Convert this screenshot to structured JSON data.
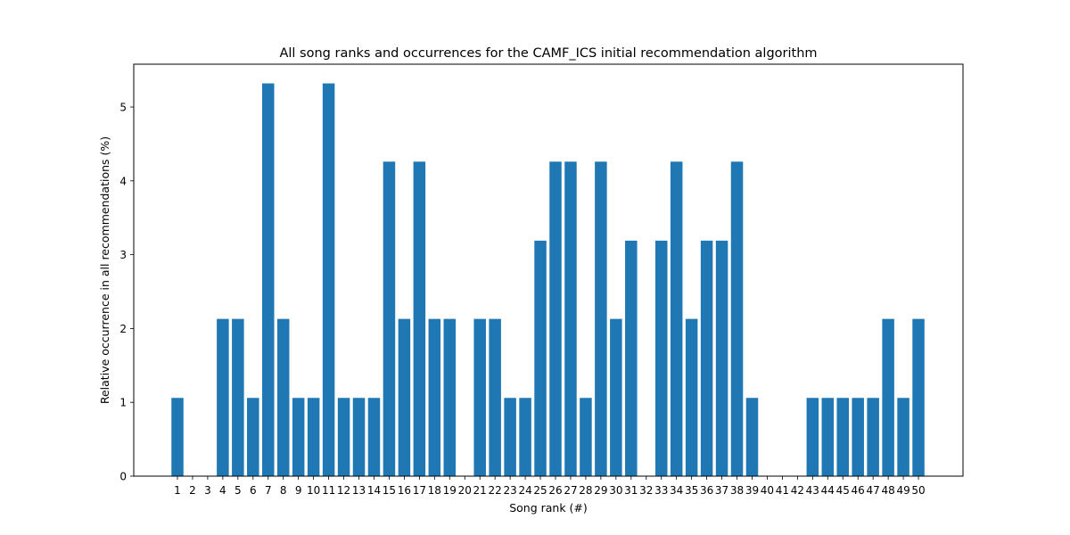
{
  "chart_data": {
    "type": "bar",
    "title": "All song ranks and occurrences for the CAMF_ICS initial recommendation algorithm",
    "xlabel": "Song rank (#)",
    "ylabel": "Relative occurrence in all recommendations (%)",
    "categories": [
      "1",
      "2",
      "3",
      "4",
      "5",
      "6",
      "7",
      "8",
      "9",
      "10",
      "11",
      "12",
      "13",
      "14",
      "15",
      "16",
      "17",
      "18",
      "19",
      "20",
      "21",
      "22",
      "23",
      "24",
      "25",
      "26",
      "27",
      "28",
      "29",
      "30",
      "31",
      "32",
      "33",
      "34",
      "35",
      "36",
      "37",
      "38",
      "39",
      "40",
      "41",
      "42",
      "43",
      "44",
      "45",
      "46",
      "47",
      "48",
      "49",
      "50"
    ],
    "values": [
      1.06,
      0,
      0,
      2.13,
      2.13,
      1.06,
      5.32,
      2.13,
      1.06,
      1.06,
      5.32,
      1.06,
      1.06,
      1.06,
      4.26,
      2.13,
      4.26,
      2.13,
      2.13,
      0,
      2.13,
      2.13,
      1.06,
      1.06,
      3.19,
      4.26,
      4.26,
      1.06,
      4.26,
      2.13,
      3.19,
      0,
      3.19,
      4.26,
      2.13,
      3.19,
      3.19,
      4.26,
      1.06,
      0,
      0,
      0,
      1.06,
      1.06,
      1.06,
      1.06,
      1.06,
      2.13,
      1.06,
      2.13
    ],
    "yticks": [
      "0",
      "1",
      "2",
      "3",
      "4",
      "5"
    ],
    "ylim": [
      0,
      5.58
    ],
    "bar_color": "#1f77b4",
    "grid": false,
    "legend": "none"
  }
}
